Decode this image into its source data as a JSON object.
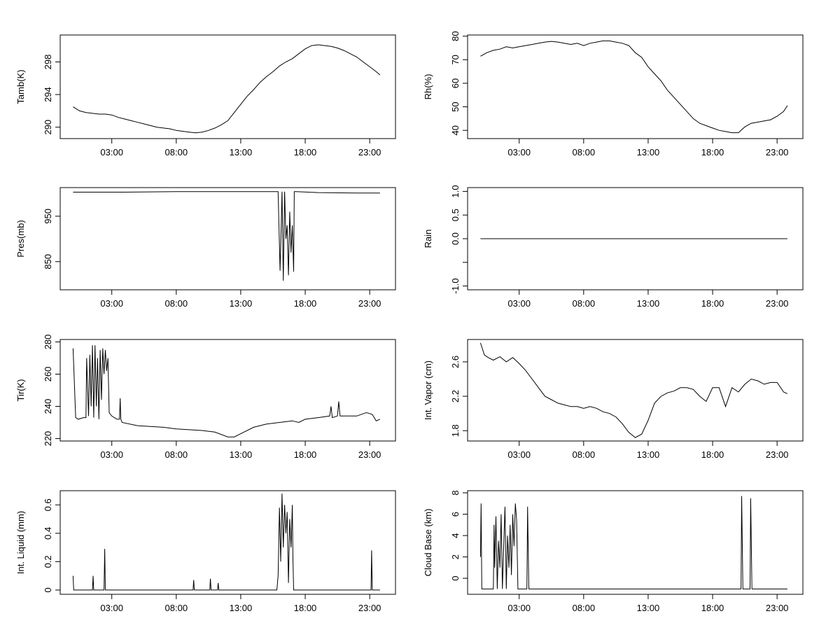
{
  "chart_data": [
    {
      "type": "line",
      "ylabel": "Tamb(K)",
      "x_ticks": [
        "03:00",
        "08:00",
        "13:00",
        "18:00",
        "23:00"
      ],
      "x_tick_hours": [
        3,
        8,
        13,
        18,
        23
      ],
      "xlim": [
        -1,
        25
      ],
      "ylim": [
        288.6,
        301.3
      ],
      "y_ticks": [
        290,
        294,
        298
      ],
      "series": [
        {
          "x": [
            0,
            0.5,
            1,
            1.5,
            2,
            2.5,
            3,
            3.5,
            4,
            4.5,
            5,
            5.5,
            6,
            6.5,
            7,
            7.5,
            8,
            8.5,
            9,
            9.5,
            10,
            10.5,
            11,
            11.5,
            12,
            12.5,
            13,
            13.5,
            14,
            14.5,
            15,
            15.5,
            16,
            16.5,
            17,
            17.5,
            18,
            18.5,
            19,
            19.5,
            20,
            20.5,
            21,
            21.5,
            22,
            22.5,
            23,
            23.5,
            23.8
          ],
          "y": [
            292.5,
            292.0,
            291.8,
            291.7,
            291.6,
            291.6,
            291.5,
            291.2,
            291.0,
            290.8,
            290.6,
            290.4,
            290.2,
            290.0,
            289.9,
            289.8,
            289.6,
            289.5,
            289.4,
            289.3,
            289.4,
            289.6,
            289.9,
            290.3,
            290.8,
            291.8,
            292.8,
            293.8,
            294.6,
            295.5,
            296.2,
            296.8,
            297.5,
            298.0,
            298.4,
            299.0,
            299.6,
            300.0,
            300.1,
            300.0,
            299.9,
            299.7,
            299.4,
            299.0,
            298.6,
            298.0,
            297.4,
            296.8,
            296.4
          ]
        }
      ]
    },
    {
      "type": "line",
      "ylabel": "Rh(%)",
      "x_ticks": [
        "03:00",
        "08:00",
        "13:00",
        "18:00",
        "23:00"
      ],
      "x_tick_hours": [
        3,
        8,
        13,
        18,
        23
      ],
      "xlim": [
        -1,
        25
      ],
      "ylim": [
        36.5,
        80.5
      ],
      "y_ticks": [
        40,
        50,
        60,
        70,
        80
      ],
      "series": [
        {
          "x": [
            0,
            0.5,
            1,
            1.5,
            2,
            2.5,
            3,
            3.5,
            4,
            4.5,
            5,
            5.5,
            6,
            6.5,
            7,
            7.5,
            8,
            8.5,
            9,
            9.5,
            10,
            10.5,
            11,
            11.5,
            12,
            12.5,
            13,
            13.5,
            14,
            14.5,
            15,
            15.5,
            16,
            16.5,
            17,
            17.5,
            18,
            18.5,
            19,
            19.5,
            20,
            20.5,
            21,
            21.5,
            22,
            22.5,
            23,
            23.5,
            23.8
          ],
          "y": [
            71.5,
            73,
            74,
            74.5,
            75.5,
            75,
            75.5,
            76,
            76.5,
            77,
            77.5,
            77.8,
            77.5,
            77,
            76.5,
            77,
            76,
            77,
            77.5,
            78,
            78,
            77.5,
            77,
            76,
            73,
            71,
            67,
            64,
            61,
            57,
            54,
            51,
            48,
            45,
            43,
            42,
            41,
            40,
            39.5,
            39,
            39,
            41.5,
            43,
            43.5,
            44,
            44.5,
            46,
            48,
            50.5
          ]
        }
      ]
    },
    {
      "type": "line",
      "ylabel": "Pres(mb)",
      "x_ticks": [
        "03:00",
        "08:00",
        "13:00",
        "18:00",
        "23:00"
      ],
      "x_tick_hours": [
        3,
        8,
        13,
        18,
        23
      ],
      "xlim": [
        -1,
        25
      ],
      "ylim": [
        788,
        1013
      ],
      "y_ticks": [
        850,
        950
      ],
      "series": [
        {
          "x": [
            0,
            4,
            8,
            11,
            14,
            15.9,
            16.05,
            16.2,
            16.3,
            16.4,
            16.5,
            16.6,
            16.7,
            16.8,
            16.9,
            17.0,
            17.1,
            17.15,
            17.3,
            19,
            22,
            23.8
          ],
          "y": [
            1003,
            1003,
            1004,
            1004,
            1004,
            1004,
            830,
            1004,
            808,
            1004,
            900,
            930,
            820,
            960,
            870,
            930,
            828,
            1004,
            1004,
            1002,
            1001,
            1001
          ]
        }
      ]
    },
    {
      "type": "line",
      "ylabel": "Rain",
      "x_ticks": [
        "03:00",
        "08:00",
        "13:00",
        "18:00",
        "23:00"
      ],
      "x_tick_hours": [
        3,
        8,
        13,
        18,
        23
      ],
      "xlim": [
        -1,
        25
      ],
      "ylim": [
        -1.08,
        1.08
      ],
      "y_ticks": [
        -1.0,
        -0.5,
        0.0,
        0.5,
        1.0
      ],
      "y_tick_labels": [
        "-1.0",
        "",
        "0.0",
        "0.5",
        "1.0"
      ],
      "series": [
        {
          "x": [
            0,
            23.8
          ],
          "y": [
            0,
            0
          ]
        }
      ]
    },
    {
      "type": "line",
      "ylabel": "Tir(K)",
      "x_ticks": [
        "03:00",
        "08:00",
        "13:00",
        "18:00",
        "23:00"
      ],
      "x_tick_hours": [
        3,
        8,
        13,
        18,
        23
      ],
      "xlim": [
        -1,
        25
      ],
      "ylim": [
        218.5,
        281.5
      ],
      "y_ticks": [
        220,
        240,
        260,
        280
      ],
      "series": [
        {
          "x": [
            0,
            0.2,
            0.4,
            0.8,
            1,
            1.05,
            1.2,
            1.3,
            1.4,
            1.5,
            1.6,
            1.7,
            1.8,
            1.9,
            2.0,
            2.1,
            2.2,
            2.3,
            2.4,
            2.5,
            2.6,
            2.7,
            2.8,
            3.0,
            3.2,
            3.4,
            3.6,
            3.65,
            3.7,
            3.8,
            5,
            7,
            8,
            10,
            11,
            12,
            12.5,
            13,
            14,
            15,
            16,
            17,
            17.5,
            18,
            19,
            19.9,
            20,
            20.1,
            20.5,
            20.6,
            20.7,
            22,
            22.7,
            22.8,
            23.2,
            23.5,
            23.8
          ],
          "y": [
            276,
            233,
            232,
            233,
            233,
            270,
            234,
            272,
            240,
            278,
            233,
            278,
            240,
            270,
            232,
            275,
            244,
            276,
            260,
            275,
            262,
            270,
            236,
            234,
            233,
            232,
            232,
            245,
            232,
            230,
            228,
            227,
            226,
            225,
            224,
            221,
            221,
            223,
            227,
            229,
            230,
            231,
            230,
            232,
            233,
            234,
            240,
            233,
            234,
            243,
            234,
            234,
            236,
            236,
            235,
            231,
            232
          ]
        }
      ]
    },
    {
      "type": "line",
      "ylabel": "Int. Vapor (cm)",
      "x_ticks": [
        "03:00",
        "08:00",
        "13:00",
        "18:00",
        "23:00"
      ],
      "x_tick_hours": [
        3,
        8,
        13,
        18,
        23
      ],
      "xlim": [
        -1,
        25
      ],
      "ylim": [
        1.68,
        2.86
      ],
      "y_ticks": [
        1.8,
        2.2,
        2.6
      ],
      "series": [
        {
          "x": [
            0,
            0.3,
            0.6,
            1,
            1.5,
            2,
            2.5,
            3,
            3.5,
            4,
            4.5,
            5,
            5.5,
            6,
            6.5,
            7,
            7.5,
            8,
            8.5,
            9,
            9.5,
            10,
            10.5,
            11,
            11.5,
            12,
            12.5,
            13,
            13.5,
            14,
            14.5,
            15,
            15.5,
            16,
            16.5,
            17,
            17.5,
            18,
            18.5,
            19,
            19.5,
            20,
            20.5,
            21,
            21.5,
            22,
            22.5,
            23,
            23.5,
            23.8
          ],
          "y": [
            2.82,
            2.68,
            2.65,
            2.62,
            2.66,
            2.6,
            2.65,
            2.58,
            2.5,
            2.4,
            2.3,
            2.2,
            2.16,
            2.12,
            2.1,
            2.08,
            2.08,
            2.06,
            2.08,
            2.06,
            2.02,
            2.0,
            1.96,
            1.88,
            1.78,
            1.72,
            1.76,
            1.92,
            2.12,
            2.2,
            2.24,
            2.26,
            2.3,
            2.3,
            2.28,
            2.2,
            2.14,
            2.3,
            2.3,
            2.08,
            2.3,
            2.25,
            2.34,
            2.4,
            2.38,
            2.34,
            2.36,
            2.36,
            2.25,
            2.23
          ]
        }
      ]
    },
    {
      "type": "line",
      "ylabel": "Int. Liquid (mm)",
      "x_ticks": [
        "03:00",
        "08:00",
        "13:00",
        "18:00",
        "23:00"
      ],
      "x_tick_hours": [
        3,
        8,
        13,
        18,
        23
      ],
      "xlim": [
        -1,
        25
      ],
      "ylim": [
        -0.03,
        0.7
      ],
      "y_ticks": [
        0.0,
        0.2,
        0.4,
        0.6
      ],
      "series": [
        {
          "x": [
            0,
            0.05,
            0.1,
            1.5,
            1.55,
            1.6,
            2.4,
            2.45,
            2.5,
            4.9,
            5.0,
            9.3,
            9.35,
            9.4,
            10.6,
            10.65,
            10.7,
            11.2,
            11.25,
            11.3,
            15.8,
            15.9,
            16.0,
            16.1,
            16.2,
            16.3,
            16.4,
            16.5,
            16.6,
            16.7,
            16.8,
            16.9,
            17.0,
            17.05,
            17.1,
            23.1,
            23.15,
            23.2,
            23.25,
            23.8
          ],
          "y": [
            0.1,
            0.0,
            0.0,
            0.0,
            0.1,
            0.0,
            0.0,
            0.29,
            0.0,
            0.0,
            0.0,
            0.0,
            0.07,
            0.0,
            0.0,
            0.08,
            0.0,
            0.0,
            0.05,
            0.0,
            0.0,
            0.1,
            0.58,
            0.2,
            0.68,
            0.3,
            0.6,
            0.4,
            0.55,
            0.05,
            0.5,
            0.3,
            0.6,
            0.22,
            0.0,
            0.0,
            0.28,
            0.0,
            0.0,
            0.0
          ]
        }
      ]
    },
    {
      "type": "line",
      "ylabel": "Cloud Base (km)",
      "x_ticks": [
        "03:00",
        "08:00",
        "13:00",
        "18:00",
        "23:00"
      ],
      "x_tick_hours": [
        3,
        8,
        13,
        18,
        23
      ],
      "xlim": [
        -1,
        25
      ],
      "ylim": [
        -1.5,
        8.2
      ],
      "y_ticks": [
        0,
        2,
        4,
        6,
        8
      ],
      "series": [
        {
          "x": [
            0,
            0.05,
            0.1,
            0.15,
            1,
            1.05,
            1.1,
            1.2,
            1.3,
            1.4,
            1.5,
            1.6,
            1.7,
            1.8,
            1.9,
            2.0,
            2.1,
            2.2,
            2.3,
            2.4,
            2.5,
            2.6,
            2.7,
            2.8,
            2.9,
            3.0,
            3.05,
            3.1,
            3.6,
            3.65,
            3.7,
            3.75,
            20.2,
            20.25,
            20.3,
            20.35,
            20.9,
            20.95,
            21.0,
            21.05,
            23.8
          ],
          "y": [
            2.0,
            7.0,
            -1.0,
            -1.0,
            -1.0,
            5.0,
            1.0,
            5.8,
            -1.0,
            3.5,
            1.0,
            6.0,
            -1.0,
            3.0,
            6.7,
            -1.0,
            4.0,
            1.0,
            5.0,
            0.3,
            6.0,
            3.0,
            7.0,
            5.5,
            -1.0,
            -1.0,
            -1.0,
            -1.0,
            -1.0,
            6.7,
            2.8,
            -1.0,
            -1.0,
            7.7,
            3.4,
            -1.0,
            -1.0,
            7.5,
            3.3,
            -1.0,
            -1.0
          ]
        }
      ]
    }
  ]
}
